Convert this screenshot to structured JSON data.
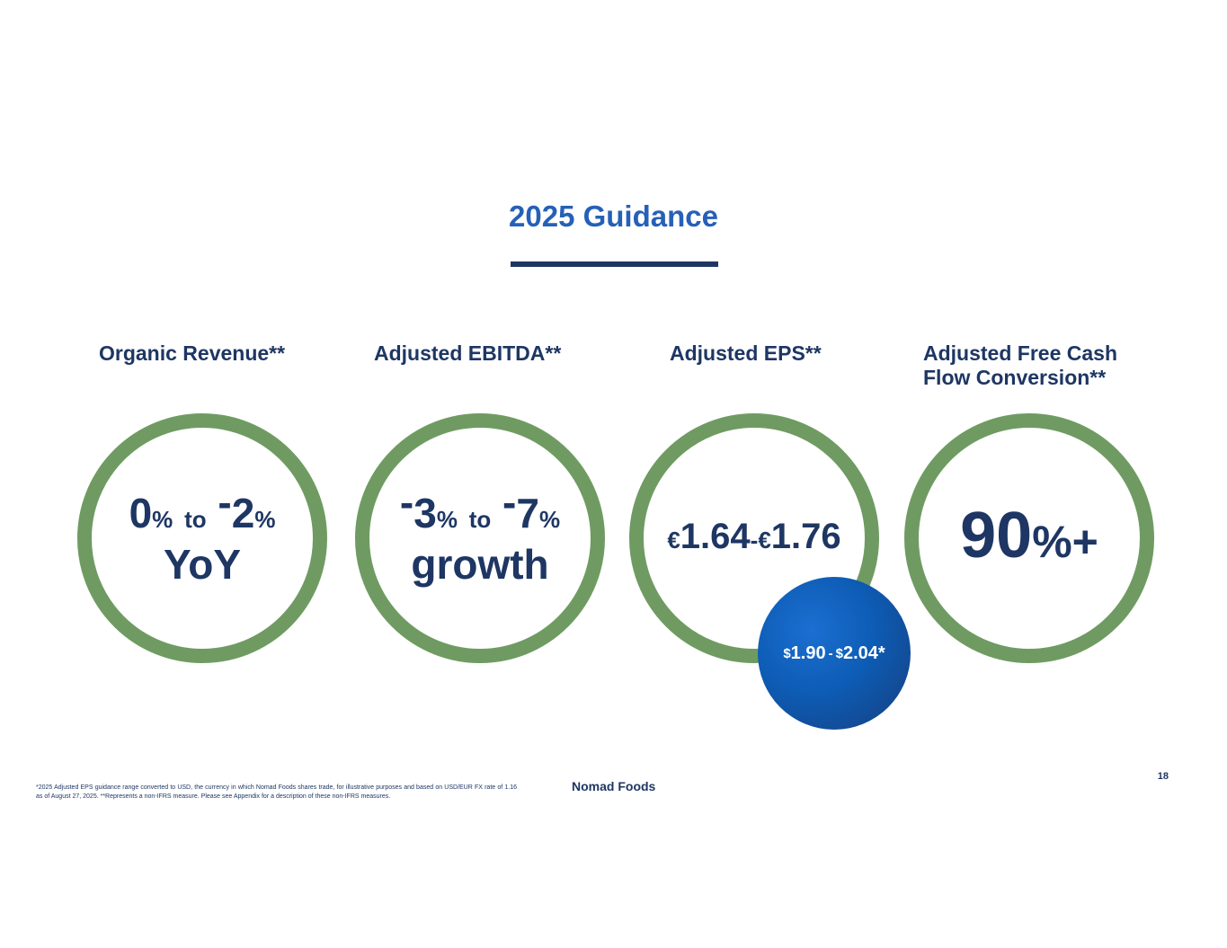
{
  "title": "2025 Guidance",
  "metrics": {
    "organic_revenue": {
      "label": "Organic Revenue**",
      "v1": "0",
      "u1": "%",
      "to": "to",
      "sign2": "-",
      "v2": "2",
      "u2": "%",
      "line2": "YoY"
    },
    "adjusted_ebitda": {
      "label": "Adjusted EBITDA**",
      "sign1": "-",
      "v1": "3",
      "u1": "%",
      "to": "to",
      "sign2": "-",
      "v2": "7",
      "u2": "%",
      "line2": "growth"
    },
    "adjusted_eps": {
      "label": "Adjusted EPS**",
      "cur1": "€",
      "v1": "1.64",
      "sep": "-",
      "cur2": "€",
      "v2": "1.76",
      "usd": {
        "cur1": "$",
        "v1": "1.90",
        "sep": "-",
        "cur2": "$",
        "v2": "2.04*"
      }
    },
    "fcf_conversion": {
      "label_line1": "Adjusted Free Cash",
      "label_line2": "Flow Conversion**",
      "value": "90",
      "suffix": "%+"
    }
  },
  "colors": {
    "title": "#2660b8",
    "navy": "#1e3663",
    "ring": "#6f9b62",
    "bubble": "#0d5cb5"
  },
  "footnote": "*2025 Adjusted EPS guidance range converted to USD, the currency in which Nomad Foods shares trade, for illustrative purposes and based on USD/EUR FX rate of 1.16 as of August 27, 2025. **Represents a non-IFRS measure. Please see Appendix for a description of these non-IFRS measures.",
  "logo_text": "Nomad Foods",
  "page_number": "18"
}
